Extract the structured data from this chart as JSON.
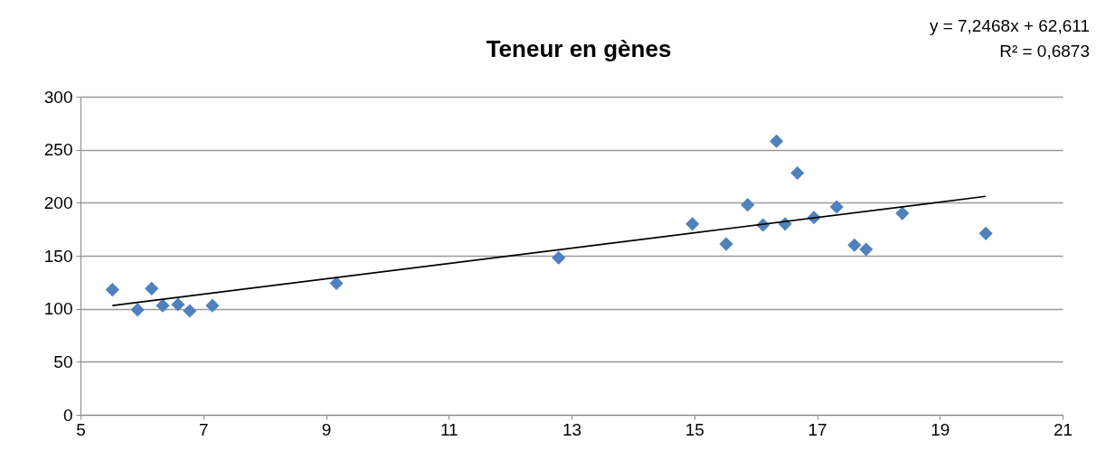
{
  "chart_data": {
    "type": "scatter",
    "title": "Teneur en gènes",
    "annotations": [
      "y = 7,2468x + 62,611",
      "R² = 0,6873"
    ],
    "xlim": [
      5,
      21
    ],
    "xticks": [
      5,
      7,
      9,
      11,
      13,
      15,
      17,
      19,
      21
    ],
    "ylim": [
      0,
      300
    ],
    "yticks": [
      0,
      50,
      100,
      150,
      200,
      250,
      300
    ],
    "grid": "y",
    "series": [
      {
        "marker": "diamond",
        "color": "#4f81bd",
        "x": [
          5.52,
          5.93,
          6.16,
          6.34,
          6.59,
          6.78,
          7.15,
          9.17,
          12.79,
          14.97,
          15.52,
          15.87,
          16.12,
          16.34,
          16.48,
          16.68,
          16.95,
          17.32,
          17.61,
          17.8,
          18.39,
          19.75
        ],
        "values": [
          118,
          99,
          119,
          103,
          104,
          98,
          103,
          124,
          148,
          180,
          161,
          198,
          179,
          258,
          180,
          228,
          186,
          196,
          160,
          156,
          190,
          171
        ]
      },
      {
        "type": "line",
        "color": "#000000",
        "x": [
          5.52,
          19.75
        ],
        "values": [
          103,
          206
        ]
      }
    ]
  }
}
